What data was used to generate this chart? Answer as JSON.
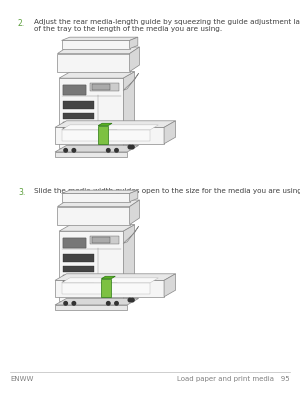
{
  "bg_color": "#ffffff",
  "step2_number": "2.",
  "step2_text": "Adjust the rear media-length guide by squeezing the guide adjustment latch and sliding the back\nof the tray to the length of the media you are using.",
  "step3_number": "3.",
  "step3_text": "Slide the media-width guides open to the size for the media you are using.",
  "footer_left": "ENWW",
  "footer_right": "Load paper and print media   95",
  "text_color": "#404040",
  "footer_color": "#808080",
  "step_num_color": "#5a9e3a",
  "highlight_color": "#7dc142",
  "line_color": "#888888",
  "fig_width": 3.0,
  "fig_height": 3.99,
  "dpi": 100,
  "text_fontsize": 5.2,
  "step_num_fontsize": 5.5,
  "footer_fontsize": 5.0
}
